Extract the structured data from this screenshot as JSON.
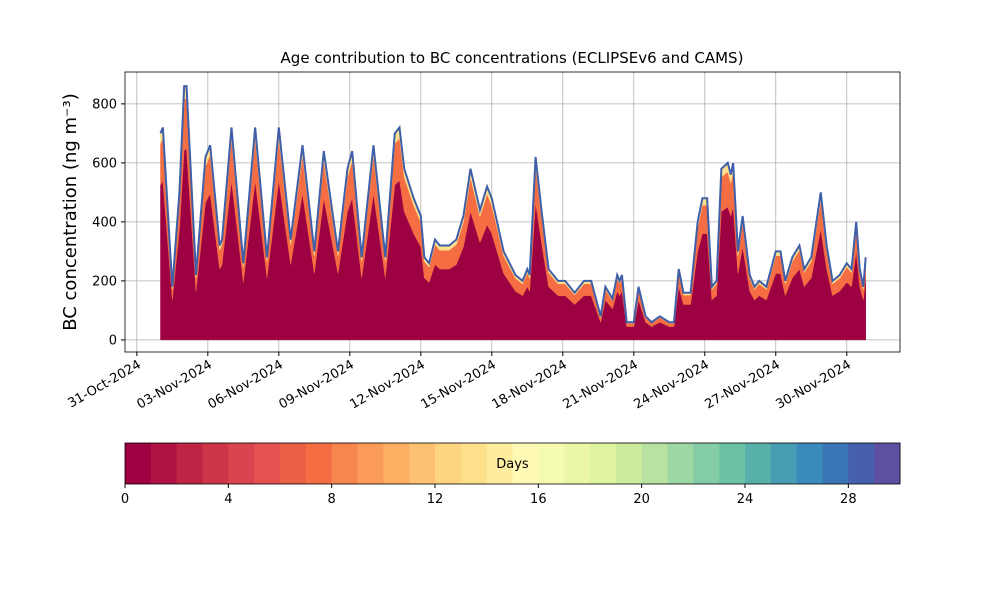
{
  "chart_data": {
    "type": "stacked_area",
    "title": "Age contribution to BC concentrations (ECLIPSEv6 and CAMS)",
    "y_label": "BC concentration (ng m⁻³)",
    "x": [
      1.0,
      1.1,
      1.5,
      1.8,
      2.0,
      2.1,
      2.5,
      2.9,
      3.1,
      3.5,
      3.6,
      4.0,
      4.5,
      5.0,
      5.5,
      6.0,
      6.5,
      7.0,
      7.5,
      7.9,
      8.5,
      8.9,
      9.1,
      9.5,
      10.0,
      10.5,
      10.9,
      11.1,
      11.3,
      11.7,
      12.0,
      12.15,
      12.35,
      12.6,
      12.8,
      13.2,
      13.5,
      13.8,
      14.1,
      14.5,
      14.8,
      15.0,
      15.5,
      16.0,
      16.3,
      16.5,
      16.6,
      16.85,
      17.1,
      17.4,
      17.8,
      18.1,
      18.5,
      18.9,
      19.2,
      19.6,
      19.8,
      20.1,
      20.3,
      20.4,
      20.5,
      20.7,
      21.0,
      21.2,
      21.5,
      21.75,
      22.1,
      22.5,
      22.7,
      22.9,
      23.1,
      23.4,
      23.7,
      23.9,
      24.1,
      24.3,
      24.5,
      24.7,
      24.97,
      25.1,
      25.2,
      25.4,
      25.6,
      25.9,
      26.1,
      26.3,
      26.6,
      27.0,
      27.2,
      27.4,
      27.7,
      28.0,
      28.2,
      28.5,
      28.9,
      29.15,
      29.4,
      29.7,
      30.0,
      30.2,
      30.4,
      30.55,
      30.7,
      30.8
    ],
    "series": [
      {
        "color": "#9e0142",
        "values": [
          525,
          540,
          135,
          375,
          645,
          645,
          165,
          465,
          495,
          240,
          255,
          540,
          195,
          540,
          210,
          540,
          255,
          495,
          225,
          480,
          225,
          435,
          480,
          210,
          495,
          210,
          525,
          540,
          435,
          360,
          315,
          210,
          195,
          255,
          240,
          240,
          255,
          315,
          435,
          330,
          390,
          360,
          225,
          165,
          150,
          180,
          165,
          465,
          330,
          180,
          150,
          150,
          120,
          150,
          150,
          60,
          135,
          105,
          165,
          150,
          165,
          45,
          45,
          135,
          60,
          45,
          60,
          45,
          45,
          180,
          120,
          120,
          300,
          360,
          360,
          135,
          150,
          435,
          450,
          420,
          450,
          225,
          315,
          165,
          135,
          150,
          135,
          225,
          225,
          150,
          210,
          240,
          180,
          210,
          375,
          240,
          150,
          165,
          195,
          180,
          300,
          180,
          135,
          210
        ]
      },
      {
        "color": "#f46d43",
        "values": [
          140,
          144,
          36,
          100,
          172,
          172,
          44,
          124,
          132,
          64,
          68,
          144,
          52,
          144,
          56,
          144,
          68,
          132,
          60,
          128,
          60,
          116,
          128,
          56,
          132,
          56,
          140,
          144,
          116,
          96,
          84,
          56,
          52,
          68,
          64,
          64,
          68,
          84,
          116,
          88,
          104,
          96,
          60,
          44,
          40,
          48,
          44,
          124,
          88,
          48,
          40,
          40,
          32,
          40,
          40,
          16,
          36,
          28,
          44,
          40,
          44,
          12,
          12,
          36,
          16,
          12,
          16,
          12,
          12,
          48,
          32,
          32,
          80,
          96,
          96,
          36,
          40,
          116,
          120,
          112,
          120,
          60,
          84,
          44,
          36,
          40,
          36,
          60,
          60,
          40,
          56,
          64,
          48,
          56,
          100,
          64,
          40,
          44,
          52,
          48,
          80,
          48,
          36,
          56
        ]
      },
      {
        "color": "#fee08b",
        "values": [
          35,
          36,
          9,
          25,
          43,
          43,
          11,
          31,
          33,
          16,
          17,
          36,
          13,
          36,
          14,
          36,
          17,
          33,
          15,
          32,
          15,
          29,
          32,
          14,
          33,
          14,
          35,
          36,
          29,
          24,
          21,
          14,
          13,
          17,
          16,
          16,
          17,
          21,
          29,
          22,
          26,
          24,
          15,
          11,
          10,
          12,
          11,
          31,
          22,
          12,
          10,
          10,
          8,
          10,
          10,
          4,
          9,
          7,
          11,
          10,
          11,
          3,
          3,
          9,
          4,
          3,
          4,
          3,
          3,
          12,
          8,
          8,
          20,
          24,
          24,
          9,
          10,
          29,
          30,
          28,
          30,
          15,
          21,
          11,
          9,
          10,
          9,
          15,
          15,
          10,
          14,
          16,
          12,
          14,
          25,
          16,
          10,
          11,
          13,
          12,
          20,
          12,
          9,
          14
        ]
      }
    ],
    "line_color": "#3f5fa8",
    "xlim": [
      -0.5,
      32.25
    ],
    "xticks": [
      {
        "value": 0,
        "label": "31-Oct-2024"
      },
      {
        "value": 3,
        "label": "03-Nov-2024"
      },
      {
        "value": 6,
        "label": "06-Nov-2024"
      },
      {
        "value": 9,
        "label": "09-Nov-2024"
      },
      {
        "value": 12,
        "label": "12-Nov-2024"
      },
      {
        "value": 15,
        "label": "15-Nov-2024"
      },
      {
        "value": 18,
        "label": "18-Nov-2024"
      },
      {
        "value": 21,
        "label": "21-Nov-2024"
      },
      {
        "value": 24,
        "label": "24-Nov-2024"
      },
      {
        "value": 27,
        "label": "27-Nov-2024"
      },
      {
        "value": 30,
        "label": "30-Nov-2024"
      }
    ],
    "ylim": [
      -41,
      908
    ],
    "yticks": [
      0,
      200,
      400,
      600,
      800
    ],
    "grid": true,
    "colorbar": {
      "label": "Days",
      "lim": [
        0,
        30
      ],
      "ticks": [
        0,
        4,
        8,
        12,
        16,
        20,
        24,
        28
      ],
      "colors": [
        "#9e0142",
        "#ae1343",
        "#bf2445",
        "#cf3548",
        "#d9444e",
        "#e45352",
        "#ec6146",
        "#f46d43",
        "#f7864e",
        "#fa9c58",
        "#fdae61",
        "#fdc171",
        "#fed481",
        "#fee08b",
        "#feec9f",
        "#fff9b6",
        "#f6fbb2",
        "#ebf7a6",
        "#e0f3a1",
        "#cdeb9d",
        "#b7e2a1",
        "#9dd7a4",
        "#84cca5",
        "#6bc2a5",
        "#58b0aa",
        "#479eb3",
        "#3a8bbb",
        "#3a75b6",
        "#4760ad",
        "#5e4fa2"
      ]
    }
  }
}
